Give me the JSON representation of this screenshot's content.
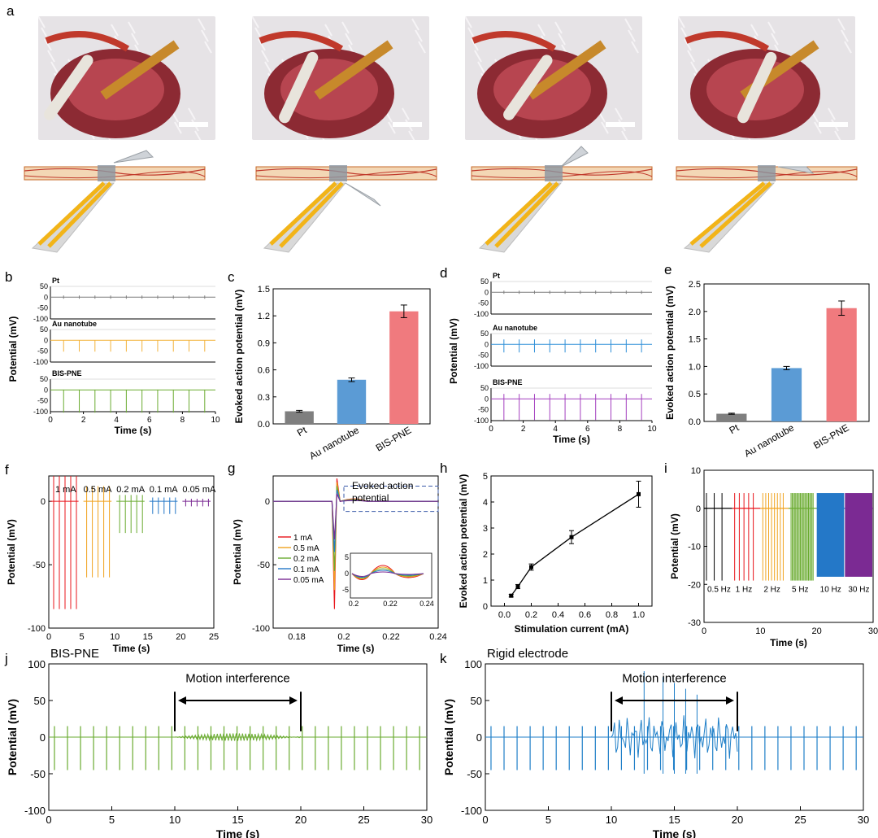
{
  "panel_letters": [
    "a",
    "b",
    "c",
    "d",
    "e",
    "f",
    "g",
    "h",
    "i",
    "j",
    "k"
  ],
  "colors": {
    "red": "#e8151b",
    "orange": "#f0a21e",
    "green": "#6aab30",
    "blue": "#2478c8",
    "purple": "#7b2a93",
    "gray": "#7f7f7f",
    "bar_pt": "#7f7f7f",
    "bar_au": "#5b9bd5",
    "bar_bis": "#f07a7e",
    "trace_au": "#f3b33b",
    "trace_bis": "#6aab30",
    "trace_au_d": "#2f8fd8",
    "trace_bis_d": "#a43fbf",
    "trace_j": "#6aab30",
    "trace_k": "#1f7fc8"
  },
  "panel_b": {
    "ylabel": "Potential (mV)",
    "xlabel": "Time (s)",
    "traces": [
      {
        "name": "Pt"
      },
      {
        "name": "Au nanotube"
      },
      {
        "name": "BIS-PNE"
      }
    ],
    "y_ticks": [
      "50",
      "0",
      "-50",
      "-100"
    ],
    "x_ticks": [
      "0",
      "2",
      "4",
      "6",
      "8",
      "10"
    ]
  },
  "panel_d": {
    "ylabel": "Potential (mV)",
    "xlabel": "Time (s)",
    "traces": [
      {
        "name": "Pt"
      },
      {
        "name": "Au nanotube"
      },
      {
        "name": "BIS-PNE"
      }
    ],
    "y_ticks": [
      "50",
      "0",
      "-50",
      "-100"
    ],
    "x_ticks": [
      "0",
      "2",
      "4",
      "6",
      "8",
      "10"
    ]
  },
  "panel_f": {
    "ylabel": "Potential (mV)",
    "xlabel": "Time (s)",
    "segment_labels": [
      "1 mA",
      "0.5 mA",
      "0.2 mA",
      "0.1 mA",
      "0.05 mA"
    ],
    "y_ticks": [
      "0",
      "-50",
      "-100"
    ],
    "x_ticks": [
      "0",
      "5",
      "10",
      "15",
      "20",
      "25"
    ]
  },
  "panel_g": {
    "ylabel": "Potential (mV)",
    "xlabel": "Time (s)",
    "annotation_line1": "Evoked action",
    "annotation_line2": "potential",
    "legend": [
      "1 mA",
      "0.5 mA",
      "0.2 mA",
      "0.1 mA",
      "0.05 mA"
    ],
    "y_ticks": [
      "0",
      "-50",
      "-100"
    ],
    "x_ticks": [
      "0.18",
      "0.2",
      "0.22",
      "0.24"
    ],
    "inset_y_ticks": [
      "5",
      "0",
      "-5"
    ],
    "inset_x_ticks": [
      "0.2",
      "0.22",
      "0.24"
    ]
  },
  "panel_i": {
    "ylabel": "Potential (mV)",
    "xlabel": "Time (s)",
    "freq_labels": [
      "0.5 Hz",
      "1 Hz",
      "2 Hz",
      "5 Hz",
      "10 Hz",
      "30 Hz"
    ],
    "y_ticks": [
      "10",
      "0",
      "-10",
      "-20",
      "-30"
    ],
    "x_ticks": [
      "0",
      "10",
      "20",
      "30"
    ]
  },
  "panel_j": {
    "title": "BIS-PNE",
    "annotation": "Motion interference",
    "ylabel": "Potential (mV)",
    "xlabel": "Time (s)",
    "y_ticks": [
      "100",
      "50",
      "0",
      "-50",
      "-100"
    ],
    "x_ticks": [
      "0",
      "5",
      "10",
      "15",
      "20",
      "25",
      "30"
    ]
  },
  "panel_k": {
    "title": "Rigid electrode",
    "annotation": "Motion interference",
    "ylabel": "Potential (mV)",
    "xlabel": "Time (s)",
    "y_ticks": [
      "100",
      "50",
      "0",
      "-50",
      "-100"
    ],
    "x_ticks": [
      "0",
      "5",
      "10",
      "15",
      "20",
      "25",
      "30"
    ]
  },
  "chart_data": [
    {
      "id": "c",
      "type": "bar",
      "categories": [
        "Pt",
        "Au nanotube",
        "BIS-PNE"
      ],
      "values": [
        0.14,
        0.49,
        1.25
      ],
      "errors": [
        0.01,
        0.02,
        0.07
      ],
      "ylabel": "Evoked action potential (mV)",
      "xlabel": "",
      "ylim": [
        0,
        1.5
      ],
      "y_ticks": [
        "0.0",
        "0.3",
        "0.6",
        "0.9",
        "1.2",
        "1.5"
      ]
    },
    {
      "id": "e",
      "type": "bar",
      "categories": [
        "Pt",
        "Au nanotube",
        "BIS-PNE"
      ],
      "values": [
        0.14,
        0.97,
        2.06
      ],
      "errors": [
        0.01,
        0.03,
        0.13
      ],
      "ylabel": "Evoked action potential (mV)",
      "xlabel": "",
      "ylim": [
        0,
        2.5
      ],
      "y_ticks": [
        "0.0",
        "0.5",
        "1.0",
        "1.5",
        "2.0",
        "2.5"
      ]
    },
    {
      "id": "h",
      "type": "line",
      "x": [
        0.05,
        0.1,
        0.2,
        0.5,
        1.0
      ],
      "y": [
        0.4,
        0.75,
        1.5,
        2.65,
        4.3
      ],
      "errors": [
        0.05,
        0.08,
        0.12,
        0.25,
        0.5
      ],
      "xlabel": "Stimulation current (mA)",
      "ylabel": "Evoked action potential (mV)",
      "xlim": [
        -0.1,
        1.1
      ],
      "ylim": [
        0,
        5
      ],
      "x_ticks": [
        "0.0",
        "0.2",
        "0.4",
        "0.6",
        "0.8",
        "1.0"
      ],
      "y_ticks": [
        "0",
        "1",
        "2",
        "3",
        "4",
        "5"
      ]
    }
  ]
}
